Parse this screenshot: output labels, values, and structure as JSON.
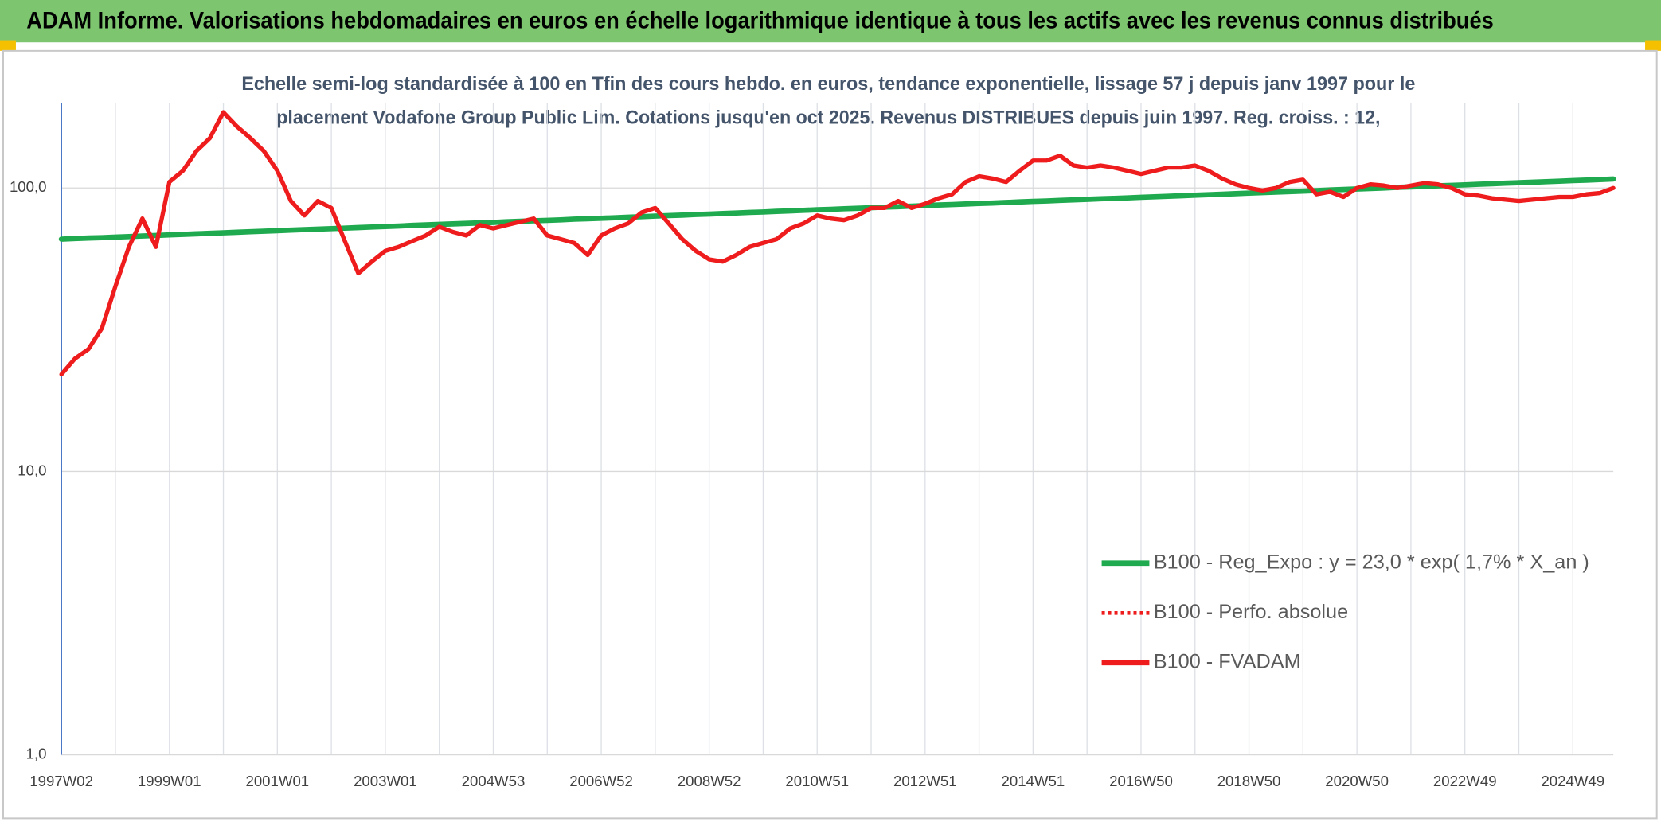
{
  "header": {
    "title": "ADAM Informe. Valorisations hebdomadaires en euros en échelle logarithmique identique à tous les actifs avec les revenus connus distribués"
  },
  "chart_data": {
    "type": "line",
    "subtitle": [
      "Echelle semi-log standardisée à 100 en Tfin des cours hebdo. en euros, tendance exponentielle, lissage 57 j depuis janv 1997 pour le",
      "placement Vodafone Group Public Lim. Cotations jusqu'en oct 2025. Revenus DISTRIBUES depuis juin 1997. Reg. croiss. : 12,"
    ],
    "log_scale": true,
    "grid": true,
    "legend": "lower right",
    "ylim": [
      1,
      200
    ],
    "yticks": [
      {
        "value": 1,
        "label": "1,0"
      },
      {
        "value": 10,
        "label": "10,0"
      },
      {
        "value": 100,
        "label": "100,0"
      }
    ],
    "categories": [
      "1997W02",
      null,
      null,
      null,
      null,
      null,
      null,
      null,
      "1999W01",
      null,
      null,
      null,
      null,
      null,
      null,
      null,
      "2001W01",
      null,
      null,
      null,
      null,
      null,
      null,
      null,
      "2003W01",
      null,
      null,
      null,
      null,
      null,
      null,
      null,
      "2004W53",
      null,
      null,
      null,
      null,
      null,
      null,
      null,
      "2006W52",
      null,
      null,
      null,
      null,
      null,
      null,
      null,
      "2008W52",
      null,
      null,
      null,
      null,
      null,
      null,
      null,
      "2010W51",
      null,
      null,
      null,
      null,
      null,
      null,
      null,
      "2012W51",
      null,
      null,
      null,
      null,
      null,
      null,
      null,
      "2014W51",
      null,
      null,
      null,
      null,
      null,
      null,
      null,
      "2016W50",
      null,
      null,
      null,
      null,
      null,
      null,
      null,
      "2018W50",
      null,
      null,
      null,
      null,
      null,
      null,
      null,
      "2020W50",
      null,
      null,
      null,
      null,
      null,
      null,
      null,
      "2022W49",
      null,
      null,
      null,
      null,
      null,
      null,
      null,
      "2024W49",
      null,
      null,
      null
    ],
    "series": [
      {
        "name": "B100 - Reg_Expo : y = 23,0 * exp( 1,7% *  X_an )",
        "color": "#1faa4f",
        "style": "solid",
        "values": [
          66.0,
          66.3,
          66.6,
          66.8,
          67.1,
          67.4,
          67.7,
          68.0,
          68.3,
          68.6,
          68.9,
          69.2,
          69.5,
          69.8,
          70.1,
          70.4,
          70.7,
          71.0,
          71.3,
          71.6,
          71.9,
          72.2,
          72.5,
          72.8,
          73.1,
          73.4,
          73.8,
          74.1,
          74.4,
          74.7,
          75.0,
          75.3,
          75.6,
          76.0,
          76.3,
          76.6,
          76.9,
          77.2,
          77.6,
          77.9,
          78.2,
          78.5,
          78.9,
          79.2,
          79.6,
          79.9,
          80.2,
          80.6,
          80.9,
          81.3,
          81.6,
          82.0,
          82.3,
          82.7,
          83.0,
          83.4,
          83.8,
          84.1,
          84.5,
          84.8,
          85.2,
          85.6,
          85.9,
          86.3,
          86.7,
          87.1,
          87.4,
          87.8,
          88.2,
          88.5,
          88.9,
          89.3,
          89.7,
          90.0,
          90.4,
          90.8,
          91.2,
          91.6,
          91.9,
          92.3,
          92.7,
          93.1,
          93.5,
          93.9,
          94.3,
          94.7,
          95.1,
          95.5,
          95.9,
          96.3,
          96.7,
          97.1,
          97.5,
          97.9,
          98.4,
          98.8,
          99.2,
          99.6,
          100.0,
          100.5,
          100.9,
          101.3,
          101.8,
          102.2,
          102.6,
          103.1,
          103.5,
          104.0,
          104.4,
          104.8,
          105.3,
          105.7,
          106.2,
          106.6,
          107.1,
          107.6
        ]
      },
      {
        "name": "B100 - Perfo. absolue",
        "color": "#ee1c1c",
        "style": "dotted"
      },
      {
        "name": "B100 - FVADAM",
        "color": "#ee1c1c",
        "style": "solid",
        "values": [
          22,
          25,
          27,
          32,
          45,
          62,
          78,
          62,
          105,
          115,
          135,
          150,
          185,
          165,
          150,
          135,
          115,
          90,
          80,
          90,
          85,
          65,
          50,
          55,
          60,
          62,
          65,
          68,
          73,
          70,
          68,
          74,
          72,
          74,
          76,
          78,
          68,
          66,
          64,
          58,
          68,
          72,
          75,
          82,
          85,
          75,
          66,
          60,
          56,
          55,
          58,
          62,
          64,
          66,
          72,
          75,
          80,
          78,
          77,
          80,
          85,
          85,
          90,
          85,
          88,
          92,
          95,
          105,
          110,
          108,
          105,
          115,
          125,
          125,
          130,
          120,
          118,
          120,
          118,
          115,
          112,
          115,
          118,
          118,
          120,
          115,
          108,
          103,
          100,
          98,
          100,
          105,
          107,
          95,
          97,
          93,
          100,
          103,
          102,
          100,
          102,
          104,
          103,
          100,
          95,
          94,
          92,
          91,
          90,
          91,
          92,
          93,
          93,
          95,
          96,
          100
        ]
      }
    ]
  }
}
